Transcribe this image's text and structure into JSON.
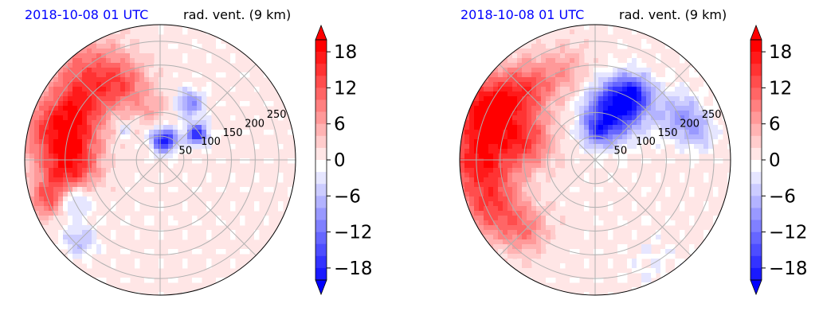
{
  "chart_data": [
    {
      "type": "heatmap",
      "projection": "polar",
      "title_left": "2018-10-08 01 UTC",
      "title_right": "rad. vent. (9 km)",
      "title_left_color": "#0000ff",
      "radial_ticks": [
        "50",
        "100",
        "150",
        "200",
        "250"
      ],
      "rlim": [
        0,
        285
      ],
      "grid": true,
      "colorbar": {
        "ticks": [
          "18",
          "12",
          "6",
          "0",
          "−6",
          "−12",
          "−18"
        ],
        "tick_values": [
          18,
          12,
          6,
          0,
          -6,
          -12,
          -18
        ],
        "range": [
          -20,
          20
        ],
        "extend": "both",
        "cmap": "bwr",
        "low_color": "#0000ff",
        "mid_color": "#ffffff",
        "high_color": "#ff0000"
      },
      "field": {
        "positive_regions": [
          {
            "theta": 130,
            "r": 230,
            "sr": 55,
            "value": 12
          },
          {
            "theta": 150,
            "r": 200,
            "sr": 40,
            "value": 10
          },
          {
            "theta": 165,
            "r": 240,
            "sr": 45,
            "value": 12
          },
          {
            "theta": 175,
            "r": 175,
            "sr": 40,
            "value": 10
          },
          {
            "theta": 190,
            "r": 205,
            "sr": 40,
            "value": 12
          },
          {
            "theta": 115,
            "r": 175,
            "sr": 35,
            "value": 8
          },
          {
            "theta": 100,
            "r": 110,
            "sr": 25,
            "value": 5
          },
          {
            "theta": 200,
            "r": 255,
            "sr": 25,
            "value": 10
          }
        ],
        "negative_regions": [
          {
            "theta": 78,
            "r": 42,
            "sr": 18,
            "value": -20
          },
          {
            "theta": 35,
            "r": 95,
            "sr": 16,
            "value": -18
          },
          {
            "theta": 62,
            "r": 135,
            "sr": 20,
            "value": -10
          },
          {
            "theta": 205,
            "r": 200,
            "sr": 25,
            "value": -10
          },
          {
            "theta": 225,
            "r": 240,
            "sr": 25,
            "value": -6
          },
          {
            "theta": 140,
            "r": 100,
            "sr": 12,
            "value": -5
          }
        ]
      }
    },
    {
      "type": "heatmap",
      "projection": "polar",
      "title_left": "2018-10-08 01 UTC",
      "title_right": "rad. vent. (9 km)",
      "title_left_color": "#0000ff",
      "radial_ticks": [
        "50",
        "100",
        "150",
        "200",
        "250"
      ],
      "rlim": [
        0,
        285
      ],
      "grid": true,
      "colorbar": {
        "ticks": [
          "18",
          "12",
          "6",
          "0",
          "−6",
          "−12",
          "−18"
        ],
        "tick_values": [
          18,
          12,
          6,
          0,
          -6,
          -12,
          -18
        ],
        "range": [
          -20,
          20
        ],
        "extend": "both",
        "cmap": "bwr",
        "low_color": "#0000ff",
        "mid_color": "#ffffff",
        "high_color": "#ff0000"
      },
      "field": {
        "positive_regions": [
          {
            "theta": 155,
            "r": 250,
            "sr": 45,
            "value": 20
          },
          {
            "theta": 180,
            "r": 245,
            "sr": 50,
            "value": 16
          },
          {
            "theta": 205,
            "r": 240,
            "sr": 45,
            "value": 12
          },
          {
            "theta": 135,
            "r": 210,
            "sr": 40,
            "value": 12
          },
          {
            "theta": 165,
            "r": 150,
            "sr": 40,
            "value": 12
          },
          {
            "theta": 225,
            "r": 210,
            "sr": 35,
            "value": 8
          },
          {
            "theta": 110,
            "r": 200,
            "sr": 40,
            "value": 6
          }
        ],
        "negative_regions": [
          {
            "theta": 70,
            "r": 110,
            "sr": 40,
            "value": -20
          },
          {
            "theta": 60,
            "r": 160,
            "sr": 30,
            "value": -14
          },
          {
            "theta": 85,
            "r": 60,
            "sr": 22,
            "value": -10
          },
          {
            "theta": 28,
            "r": 200,
            "sr": 35,
            "value": -8
          },
          {
            "theta": 15,
            "r": 225,
            "sr": 25,
            "value": -6
          },
          {
            "theta": 300,
            "r": 250,
            "sr": 40,
            "value": -2
          }
        ]
      }
    }
  ]
}
